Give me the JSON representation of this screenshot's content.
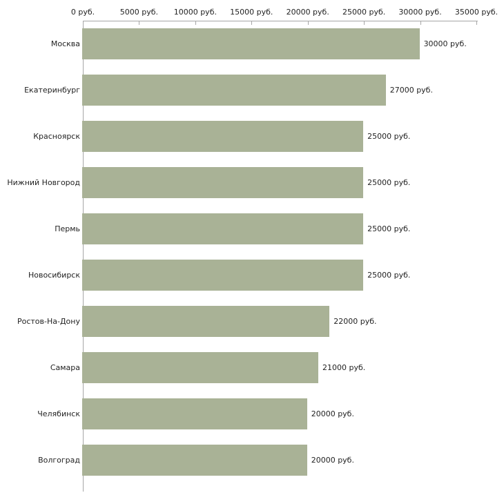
{
  "chart_data": {
    "type": "bar",
    "orientation": "horizontal",
    "title": "",
    "xlabel": "",
    "ylabel": "",
    "categories": [
      "Москва",
      "Екатеринбург",
      "Красноярск",
      "Нижний Новгород",
      "Пермь",
      "Новосибирск",
      "Ростов-На-Дону",
      "Самара",
      "Челябинск",
      "Волгоград"
    ],
    "values": [
      30000,
      27000,
      25000,
      25000,
      25000,
      25000,
      22000,
      21000,
      20000,
      20000
    ],
    "value_labels": [
      "30000 руб.",
      "27000 руб.",
      "25000 руб.",
      "25000 руб.",
      "25000 руб.",
      "25000 руб.",
      "22000 руб.",
      "21000 руб.",
      "20000 руб.",
      "20000 руб."
    ],
    "x_ticks": [
      0,
      5000,
      10000,
      15000,
      20000,
      25000,
      30000,
      35000
    ],
    "x_tick_labels": [
      "0 руб.",
      "5000 руб.",
      "10000 руб.",
      "15000 руб.",
      "20000 руб.",
      "25000 руб.",
      "30000 руб.",
      "35000 руб."
    ],
    "xlim": [
      0,
      35000
    ],
    "grid": "off",
    "legend": "none",
    "colors": {
      "bar": "#a9b296",
      "axis": "#a6a6a6",
      "text": "#222222",
      "background": "#ffffff"
    }
  }
}
